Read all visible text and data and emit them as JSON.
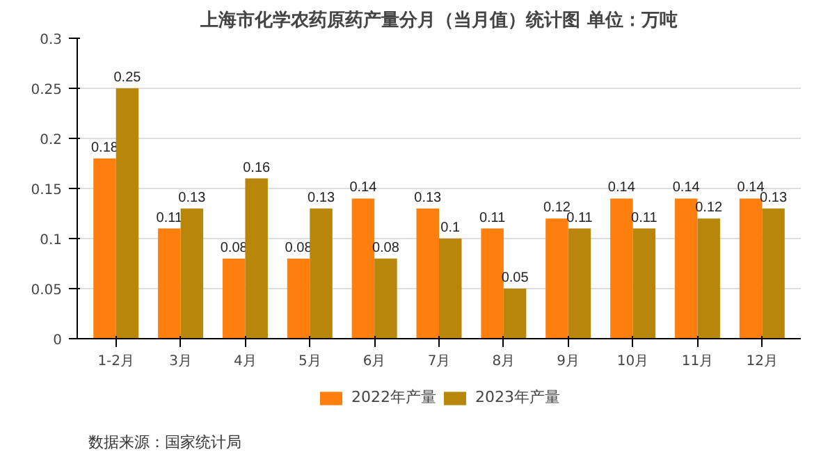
{
  "chart_data": {
    "type": "bar",
    "title": "上海市化学农药原药产量分月（当月值）统计图 单位：万吨",
    "categories": [
      "1-2月",
      "3月",
      "4月",
      "5月",
      "6月",
      "7月",
      "8月",
      "9月",
      "10月",
      "11月",
      "12月"
    ],
    "series": [
      {
        "name": "2022年产量",
        "color": "#ff7f0e",
        "values": [
          0.18,
          0.11,
          0.08,
          0.08,
          0.14,
          0.13,
          0.11,
          0.12,
          0.14,
          0.14,
          0.14
        ]
      },
      {
        "name": "2023年产量",
        "color": "#b8860b",
        "values": [
          0.25,
          0.13,
          0.16,
          0.13,
          0.08,
          0.1,
          0.05,
          0.11,
          0.11,
          0.12,
          0.13
        ]
      }
    ],
    "ylim": [
      0,
      0.3
    ],
    "yticks": [
      0,
      0.05,
      0.1,
      0.15,
      0.2,
      0.25,
      0.3
    ],
    "grid": "y",
    "legend": "bottom",
    "data_labels": true,
    "annotations": [
      "数据来源：国家统计局"
    ]
  }
}
